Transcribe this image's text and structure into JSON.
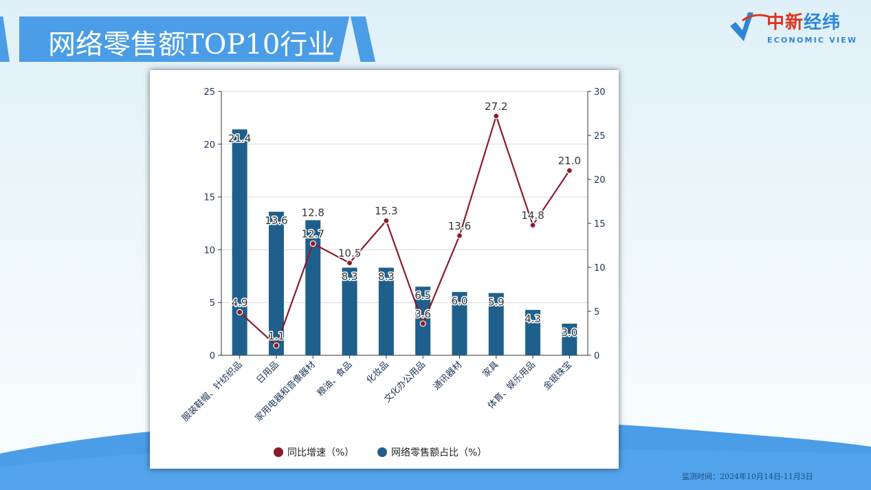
{
  "header": {
    "title": "网络零售额TOP10行业"
  },
  "logo": {
    "cn_red": "中新",
    "cn_blue": "经纬",
    "en": "ECONOMIC VIEW"
  },
  "footer": {
    "monitor_period": "监测时间：2024年10月14日-11月3日"
  },
  "colors": {
    "bar": "#1f5f8b",
    "line": "#8b1a2b",
    "banner": "#4a9de6"
  },
  "chart_data": {
    "type": "bar+line",
    "categories": [
      "服装鞋帽、针纺织品",
      "日用品",
      "家用电器和音像器材",
      "粮油、食品",
      "化妆品",
      "文化办公用品",
      "通讯器材",
      "家具",
      "体育、娱乐用品",
      "金银珠宝"
    ],
    "series": [
      {
        "name": "网络零售额占比（%）",
        "type": "bar",
        "axis": "left",
        "values": [
          21.4,
          13.6,
          12.8,
          8.3,
          8.3,
          6.5,
          6.0,
          5.9,
          4.3,
          3.0
        ]
      },
      {
        "name": "同比增速（%）",
        "type": "line",
        "axis": "right",
        "values": [
          4.9,
          1.1,
          12.7,
          10.5,
          15.3,
          3.6,
          13.6,
          27.2,
          14.8,
          21.0
        ]
      }
    ],
    "left_ylim": [
      0,
      25
    ],
    "left_ticks": [
      0,
      5,
      10,
      15,
      20,
      25
    ],
    "right_ylim": [
      0,
      30
    ],
    "right_ticks": [
      0,
      5,
      10,
      15,
      20,
      25,
      30
    ],
    "grid": true,
    "legend": "bottom",
    "legend_labels": [
      "同比增速（%）",
      "网络零售额占比（%）"
    ]
  }
}
